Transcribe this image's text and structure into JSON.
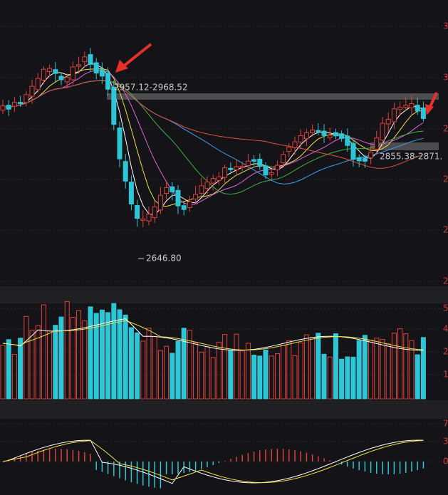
{
  "annotations": {
    "range_high": "2957.12-2968.52",
    "low": "2646.80",
    "range_right": "2855.38-2871."
  },
  "price_axis": [
    "3",
    "3",
    "2",
    "2",
    "2",
    "2"
  ],
  "volume_axis": [
    "5",
    "4",
    "2",
    "1"
  ],
  "macd_axis": [
    "7",
    "3",
    "0"
  ]
}
